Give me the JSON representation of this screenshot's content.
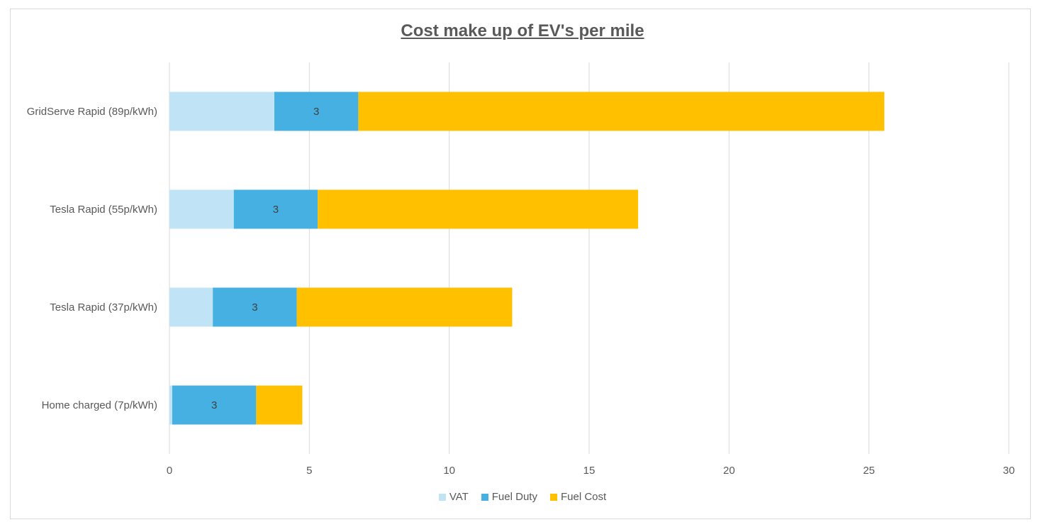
{
  "chart_data": {
    "type": "bar",
    "orientation": "horizontal",
    "stacked": true,
    "title": "Cost make up of EV's per mile",
    "categories": [
      "GridServe Rapid (89p/kWh)",
      "Tesla Rapid (55p/kWh)",
      "Tesla Rapid (37p/kWh)",
      "Home charged (7p/kWh)"
    ],
    "series": [
      {
        "name": "VAT",
        "color": "#c0e4f5",
        "values": [
          3.75,
          2.3,
          1.55,
          0.1
        ],
        "labels": [
          "",
          "",
          "",
          ""
        ]
      },
      {
        "name": "Fuel Duty",
        "color": "#45b0e1",
        "values": [
          3,
          3,
          3,
          3
        ],
        "labels": [
          "3",
          "3",
          "3",
          "3"
        ]
      },
      {
        "name": "Fuel Cost",
        "color": "#ffc000",
        "values": [
          18.8,
          11.45,
          7.7,
          1.65
        ],
        "labels": [
          "",
          "",
          "",
          ""
        ]
      }
    ],
    "xlim": [
      0,
      30
    ],
    "xticks": [
      "0",
      "5",
      "10",
      "15",
      "20",
      "25",
      "30"
    ],
    "grid": true,
    "legend": "bottom"
  }
}
